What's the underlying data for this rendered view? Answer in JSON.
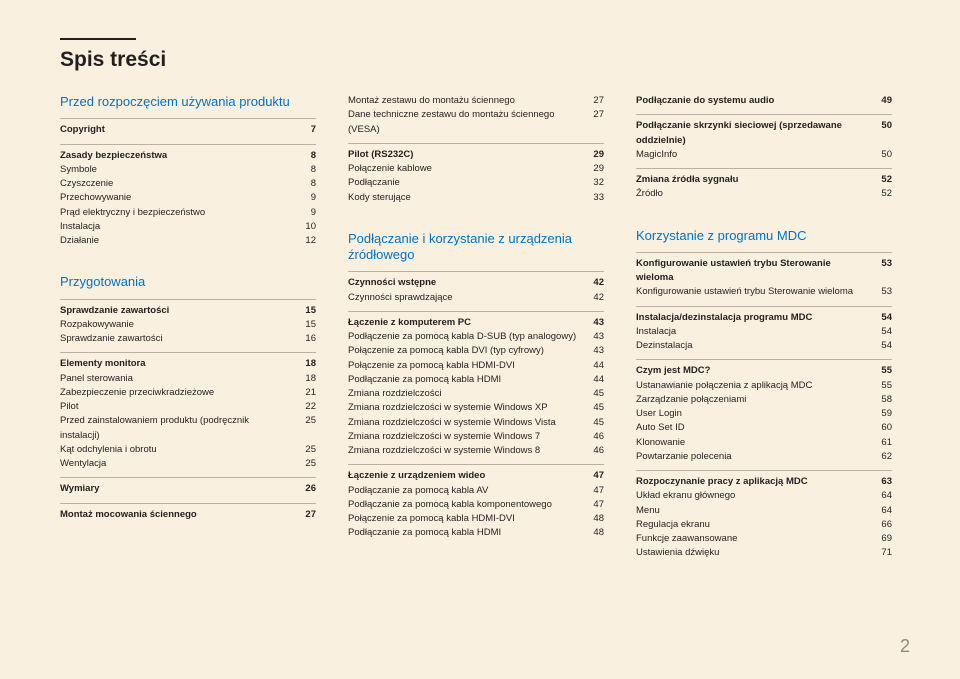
{
  "title": "Spis treści",
  "pagenum": "2",
  "col1": {
    "sec1": {
      "head": "Przed rozpoczęciem używania produktu",
      "groups": [
        [
          {
            "l": "Copyright",
            "p": "7",
            "b": true
          }
        ],
        [
          {
            "l": "Zasady bezpieczeństwa",
            "p": "8",
            "b": true
          },
          {
            "l": "Symbole",
            "p": "8"
          },
          {
            "l": "Czyszczenie",
            "p": "8"
          },
          {
            "l": "Przechowywanie",
            "p": "9"
          },
          {
            "l": "Prąd elektryczny i bezpieczeństwo",
            "p": "9"
          },
          {
            "l": "Instalacja",
            "p": "10"
          },
          {
            "l": "Działanie",
            "p": "12"
          }
        ]
      ]
    },
    "sec2": {
      "head": "Przygotowania",
      "groups": [
        [
          {
            "l": "Sprawdzanie zawartości",
            "p": "15",
            "b": true
          },
          {
            "l": "Rozpakowywanie",
            "p": "15"
          },
          {
            "l": "Sprawdzanie zawartości",
            "p": "16"
          }
        ],
        [
          {
            "l": "Elementy monitora",
            "p": "18",
            "b": true
          },
          {
            "l": "Panel sterowania",
            "p": "18"
          },
          {
            "l": "Zabezpieczenie przeciwkradzieżowe",
            "p": "21"
          },
          {
            "l": "Pilot",
            "p": "22"
          },
          {
            "l": "Przed zainstalowaniem produktu (podręcznik instalacji)",
            "p": "25"
          },
          {
            "l": "Kąt odchylenia i obrotu",
            "p": "25"
          },
          {
            "l": "Wentylacja",
            "p": "25"
          }
        ],
        [
          {
            "l": "Wymiary",
            "p": "26",
            "b": true
          }
        ],
        [
          {
            "l": "Montaż mocowania ściennego",
            "p": "27",
            "b": true
          }
        ]
      ]
    }
  },
  "col2": {
    "top": [
      {
        "l": "Montaż zestawu do montażu ściennego",
        "p": "27"
      },
      {
        "l": "Dane techniczne zestawu do montażu ściennego (VESA)",
        "p": "27"
      }
    ],
    "pilotGroup": [
      {
        "l": "Pilot (RS232C)",
        "p": "29",
        "b": true
      },
      {
        "l": "Połączenie kablowe",
        "p": "29"
      },
      {
        "l": "Podłączanie",
        "p": "32"
      },
      {
        "l": "Kody sterujące",
        "p": "33"
      }
    ],
    "sec": {
      "head": "Podłączanie i korzystanie z urządzenia źródłowego",
      "groups": [
        [
          {
            "l": "Czynności wstępne",
            "p": "42",
            "b": true
          },
          {
            "l": "Czynności sprawdzające",
            "p": "42"
          }
        ],
        [
          {
            "l": "Łączenie z komputerem PC",
            "p": "43",
            "b": true
          },
          {
            "l": "Podłączenie za pomocą kabla D-SUB (typ analogowy)",
            "p": "43"
          },
          {
            "l": "Połączenie za pomocą kabla DVI (typ cyfrowy)",
            "p": "43"
          },
          {
            "l": "Połączenie za pomocą kabla HDMI-DVI",
            "p": "44"
          },
          {
            "l": "Podłączanie za pomocą kabla HDMI",
            "p": "44"
          },
          {
            "l": "Zmiana rozdzielczości",
            "p": "45"
          },
          {
            "l": "Zmiana rozdzielczości w systemie Windows XP",
            "p": "45"
          },
          {
            "l": "Zmiana rozdzielczości w systemie Windows Vista",
            "p": "45"
          },
          {
            "l": "Zmiana rozdzielczości w systemie Windows 7",
            "p": "46"
          },
          {
            "l": "Zmiana rozdzielczości w systemie Windows 8",
            "p": "46"
          }
        ],
        [
          {
            "l": "Łączenie z urządzeniem wideo",
            "p": "47",
            "b": true
          },
          {
            "l": "Podłączanie za pomocą kabla AV",
            "p": "47"
          },
          {
            "l": "Podłączanie za pomocą kabla komponentowego",
            "p": "47"
          },
          {
            "l": "Połączenie za pomocą kabla HDMI-DVI",
            "p": "48"
          },
          {
            "l": "Podłączanie za pomocą kabla HDMI",
            "p": "48"
          }
        ]
      ]
    }
  },
  "col3": {
    "topGroups": [
      [
        {
          "l": "Podłączanie do systemu audio",
          "p": "49",
          "b": true
        }
      ],
      [
        {
          "l": "Podłączanie skrzynki sieciowej (sprzedawane oddzielnie)",
          "p": "50",
          "b": true
        },
        {
          "l": "MagicInfo",
          "p": "50"
        }
      ],
      [
        {
          "l": "Zmiana źródła sygnału",
          "p": "52",
          "b": true
        },
        {
          "l": "Źródło",
          "p": "52"
        }
      ]
    ],
    "sec": {
      "head": "Korzystanie z programu MDC",
      "groups": [
        [
          {
            "l": "Konfigurowanie ustawień trybu Sterowanie wieloma",
            "p": "53",
            "b": true
          },
          {
            "l": "Konfigurowanie ustawień trybu Sterowanie wieloma",
            "p": "53"
          }
        ],
        [
          {
            "l": "Instalacja/dezinstalacja programu MDC",
            "p": "54",
            "b": true
          },
          {
            "l": "Instalacja",
            "p": "54"
          },
          {
            "l": "Dezinstalacja",
            "p": "54"
          }
        ],
        [
          {
            "l": "Czym jest MDC?",
            "p": "55",
            "b": true
          },
          {
            "l": "Ustanawianie połączenia z aplikacją MDC",
            "p": "55"
          },
          {
            "l": "Zarządzanie połączeniami",
            "p": "58"
          },
          {
            "l": "User Login",
            "p": "59"
          },
          {
            "l": "Auto Set ID",
            "p": "60"
          },
          {
            "l": "Klonowanie",
            "p": "61"
          },
          {
            "l": "Powtarzanie polecenia",
            "p": "62"
          }
        ],
        [
          {
            "l": "Rozpoczynanie pracy z aplikacją MDC",
            "p": "63",
            "b": true
          },
          {
            "l": "Układ ekranu głównego",
            "p": "64"
          },
          {
            "l": "Menu",
            "p": "64"
          },
          {
            "l": "Regulacja ekranu",
            "p": "66"
          },
          {
            "l": "Funkcje zaawansowane",
            "p": "69"
          },
          {
            "l": "Ustawienia dźwięku",
            "p": "71"
          }
        ]
      ]
    }
  }
}
